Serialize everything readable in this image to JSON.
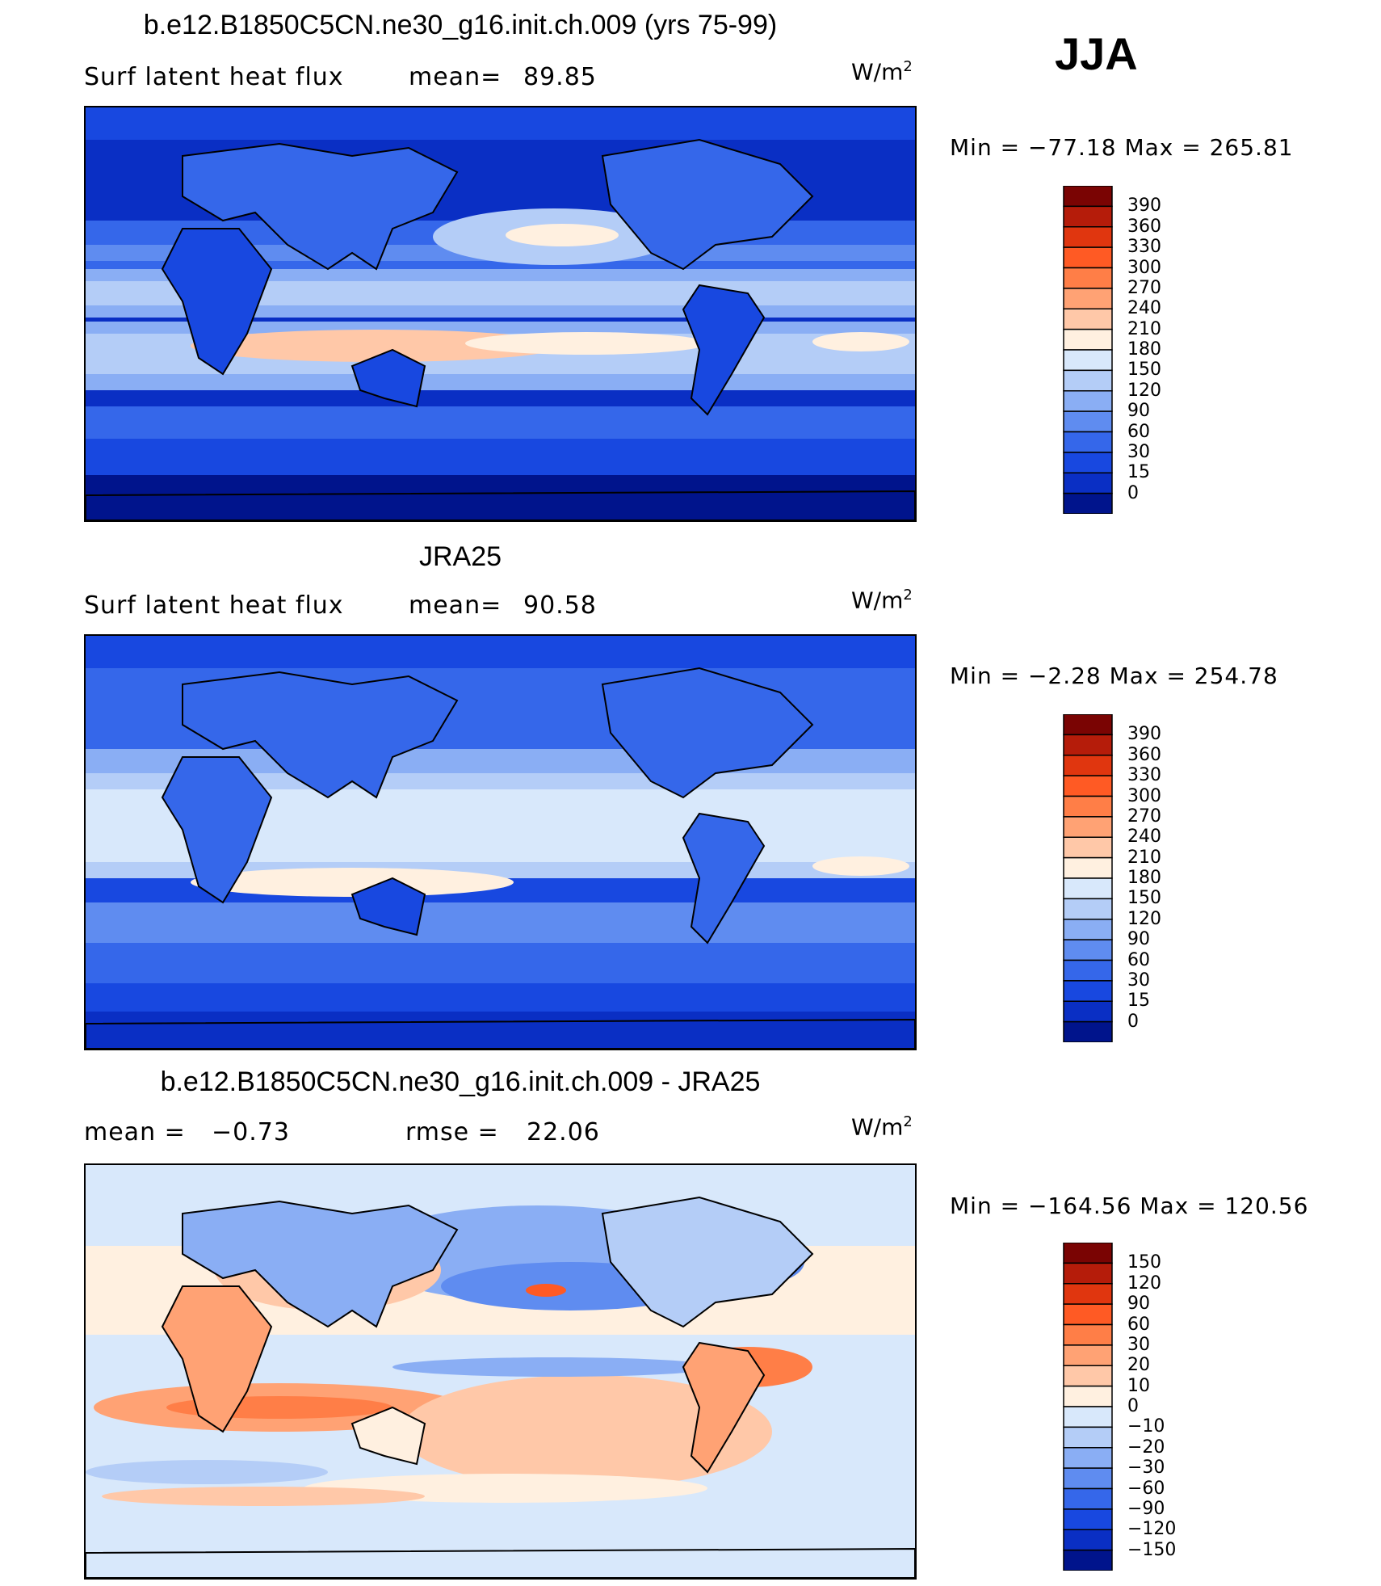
{
  "season": "JJA",
  "panels": [
    {
      "title": "b.e12.B1850C5CN.ne30_g16.init.ch.009 (yrs 75-99)",
      "left_label": "Surf latent heat flux",
      "stat1": "mean=",
      "stat1_value": "89.85",
      "stat2": "",
      "stat2_value": "",
      "units": "W/m",
      "units_sup": "2",
      "minmax": "Min  =  −77.18  Max  =  265.81",
      "colorbar": {
        "labels": [
          "390",
          "360",
          "330",
          "300",
          "270",
          "240",
          "210",
          "180",
          "150",
          "120",
          "90",
          "60",
          "30",
          "15",
          "0"
        ],
        "colors": [
          "#7a0403",
          "#b51c0a",
          "#e0360f",
          "#ff5a24",
          "#ff7e47",
          "#ffa274",
          "#ffc8a8",
          "#fff0e0",
          "#d8e8fb",
          "#b4cdf7",
          "#8aaef4",
          "#5f8cf0",
          "#3567ea",
          "#1848e0",
          "#0a2fc4",
          "#00148c"
        ]
      },
      "chart_data": {
        "type": "heatmap",
        "title": "b.e12.B1850C5CN.ne30_g16.init.ch.009 (yrs 75-99)",
        "variable": "Surf latent heat flux",
        "units": "W/m2",
        "mean": 89.85,
        "min": -77.18,
        "max": 265.81,
        "levels": [
          0,
          15,
          30,
          60,
          90,
          120,
          150,
          180,
          210,
          240,
          270,
          300,
          330,
          360,
          390
        ]
      }
    },
    {
      "title": "JRA25",
      "left_label": "Surf latent heat flux",
      "stat1": "mean=",
      "stat1_value": "90.58",
      "stat2": "",
      "stat2_value": "",
      "units": "W/m",
      "units_sup": "2",
      "minmax": "Min  =   −2.28  Max  =  254.78",
      "colorbar": {
        "labels": [
          "390",
          "360",
          "330",
          "300",
          "270",
          "240",
          "210",
          "180",
          "150",
          "120",
          "90",
          "60",
          "30",
          "15",
          "0"
        ],
        "colors": [
          "#7a0403",
          "#b51c0a",
          "#e0360f",
          "#ff5a24",
          "#ff7e47",
          "#ffa274",
          "#ffc8a8",
          "#fff0e0",
          "#d8e8fb",
          "#b4cdf7",
          "#8aaef4",
          "#5f8cf0",
          "#3567ea",
          "#1848e0",
          "#0a2fc4",
          "#00148c"
        ]
      },
      "chart_data": {
        "type": "heatmap",
        "title": "JRA25",
        "variable": "Surf latent heat flux",
        "units": "W/m2",
        "mean": 90.58,
        "min": -2.28,
        "max": 254.78,
        "levels": [
          0,
          15,
          30,
          60,
          90,
          120,
          150,
          180,
          210,
          240,
          270,
          300,
          330,
          360,
          390
        ]
      }
    },
    {
      "title": "b.e12.B1850C5CN.ne30_g16.init.ch.009 - JRA25",
      "left_label": "mean =",
      "stat1": "−0.73",
      "stat1_value": "",
      "stat2": "rmse  =",
      "stat2_value": "22.06",
      "units": "W/m",
      "units_sup": "2",
      "minmax": "Min  =  −164.56  Max  =  120.56",
      "colorbar": {
        "labels": [
          "150",
          "120",
          "90",
          "60",
          "30",
          "20",
          "10",
          "0",
          "−10",
          "−20",
          "−30",
          "−60",
          "−90",
          "−120",
          "−150"
        ],
        "colors": [
          "#7a0403",
          "#b51c0a",
          "#e0360f",
          "#ff5a24",
          "#ff7e47",
          "#ffa274",
          "#ffc8a8",
          "#fff0e0",
          "#d8e8fb",
          "#b4cdf7",
          "#8aaef4",
          "#5f8cf0",
          "#3567ea",
          "#1848e0",
          "#0a2fc4",
          "#00148c"
        ]
      },
      "chart_data": {
        "type": "heatmap",
        "title": "b.e12.B1850C5CN.ne30_g16.init.ch.009 - JRA25",
        "units": "W/m2",
        "mean": -0.73,
        "rmse": 22.06,
        "min": -164.56,
        "max": 120.56,
        "levels": [
          -150,
          -120,
          -90,
          -60,
          -30,
          -20,
          -10,
          0,
          10,
          20,
          30,
          60,
          90,
          120,
          150
        ]
      }
    }
  ]
}
